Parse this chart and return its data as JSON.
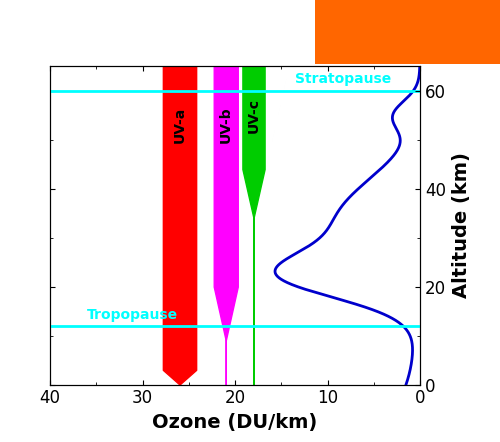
{
  "xlabel": "Ozone (DU/km)",
  "ylabel": "Altitude (km)",
  "xlim": [
    40,
    0
  ],
  "ylim": [
    0,
    65
  ],
  "x_ticks": [
    40,
    30,
    20,
    10,
    0
  ],
  "y_ticks": [
    0,
    20,
    40,
    60
  ],
  "stratopause_alt": 60,
  "tropopause_alt": 12,
  "stratopause_label": "Stratopause",
  "tropopause_label": "Tropopause",
  "uva_color": "#ff0000",
  "uvb_color": "#ff00ff",
  "uvc_color": "#00cc00",
  "line_color": "#0000cc",
  "cyan_color": "#00ffff",
  "background_color": "#ffffff",
  "orange_box_color": "#ff6600",
  "xlabel_fontsize": 14,
  "ylabel_fontsize": 14,
  "tick_fontsize": 12,
  "label_fontsize": 10
}
